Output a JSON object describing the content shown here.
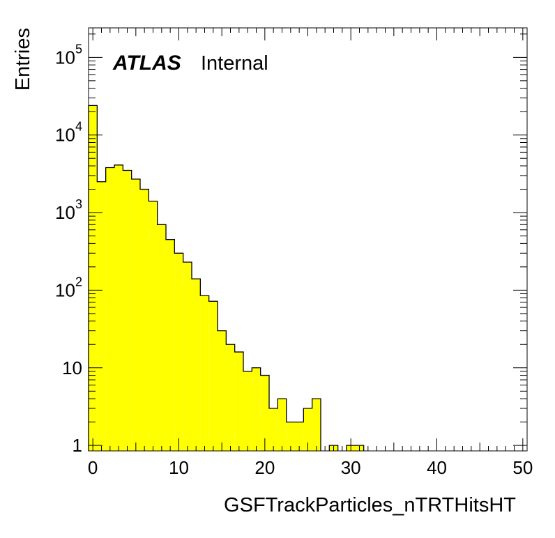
{
  "chart_data": {
    "type": "histogram",
    "xlabel": "GSFTrackParticles_nTRTHitsHT",
    "ylabel": "Entries",
    "label_bold": "ATLAS",
    "label_status": "Internal",
    "fill_color": "#ffff00",
    "line_color": "#000000",
    "y_scale": "log",
    "xlim": [
      -0.5,
      50.5
    ],
    "ylim": [
      0.85,
      240000
    ],
    "bin_width": 1,
    "bin_start": -0.5,
    "x_ticks": [
      "0",
      "10",
      "20",
      "30",
      "40",
      "50"
    ],
    "y_ticks": [
      {
        "base": "1",
        "exp": ""
      },
      {
        "base": "10",
        "exp": ""
      },
      {
        "base": "10",
        "exp": "2"
      },
      {
        "base": "10",
        "exp": "3"
      },
      {
        "base": "10",
        "exp": "4"
      },
      {
        "base": "10",
        "exp": "5"
      }
    ],
    "values": [
      24000,
      2500,
      3800,
      4100,
      3500,
      2700,
      2000,
      1400,
      700,
      450,
      300,
      230,
      140,
      85,
      72,
      30,
      20,
      16,
      9,
      10,
      8,
      3,
      4,
      2,
      2,
      3,
      4,
      0,
      1,
      0,
      1,
      1,
      0,
      0,
      0,
      0,
      0,
      0,
      0,
      0,
      0,
      0,
      0,
      0,
      0,
      0,
      0,
      0,
      0,
      0,
      0
    ]
  }
}
